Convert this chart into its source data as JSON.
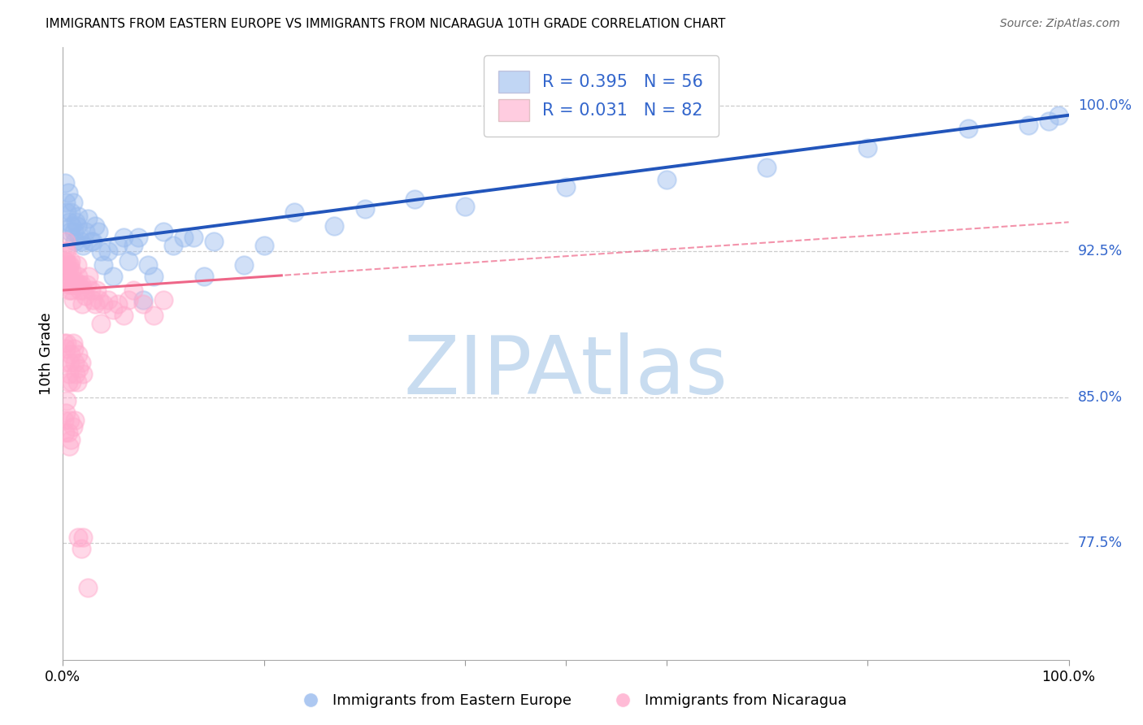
{
  "title": "IMMIGRANTS FROM EASTERN EUROPE VS IMMIGRANTS FROM NICARAGUA 10TH GRADE CORRELATION CHART",
  "source": "Source: ZipAtlas.com",
  "ylabel": "10th Grade",
  "ytick_labels": [
    "77.5%",
    "85.0%",
    "92.5%",
    "100.0%"
  ],
  "ytick_values": [
    0.775,
    0.85,
    0.925,
    1.0
  ],
  "xlim": [
    0.0,
    1.0
  ],
  "ylim": [
    0.715,
    1.03
  ],
  "legend_r1": "R = 0.395",
  "legend_n1": "N = 56",
  "legend_r2": "R = 0.031",
  "legend_n2": "N = 82",
  "blue_color": "#99BBEE",
  "pink_color": "#FFAACC",
  "line_blue": "#2255BB",
  "line_pink": "#EE6688",
  "text_blue": "#3366CC",
  "watermark_color": "#C8DCF0",
  "watermark": "ZIPAtlas",
  "legend_label1": "Immigrants from Eastern Europe",
  "legend_label2": "Immigrants from Nicaragua",
  "blue_x": [
    0.002,
    0.003,
    0.004,
    0.005,
    0.006,
    0.007,
    0.008,
    0.009,
    0.01,
    0.011,
    0.012,
    0.013,
    0.014,
    0.015,
    0.016,
    0.018,
    0.02,
    0.022,
    0.025,
    0.028,
    0.03,
    0.032,
    0.035,
    0.038,
    0.04,
    0.045,
    0.05,
    0.055,
    0.06,
    0.065,
    0.07,
    0.075,
    0.08,
    0.085,
    0.09,
    0.1,
    0.11,
    0.12,
    0.13,
    0.14,
    0.15,
    0.18,
    0.2,
    0.23,
    0.27,
    0.3,
    0.35,
    0.4,
    0.5,
    0.6,
    0.7,
    0.8,
    0.9,
    0.96,
    0.98,
    0.99
  ],
  "blue_y": [
    0.96,
    0.95,
    0.945,
    0.955,
    0.94,
    0.935,
    0.945,
    0.938,
    0.95,
    0.935,
    0.93,
    0.94,
    0.938,
    0.943,
    0.933,
    0.93,
    0.928,
    0.935,
    0.942,
    0.93,
    0.93,
    0.938,
    0.935,
    0.925,
    0.918,
    0.925,
    0.912,
    0.928,
    0.932,
    0.92,
    0.928,
    0.932,
    0.9,
    0.918,
    0.912,
    0.935,
    0.928,
    0.932,
    0.932,
    0.912,
    0.93,
    0.918,
    0.928,
    0.945,
    0.938,
    0.947,
    0.952,
    0.948,
    0.958,
    0.962,
    0.968,
    0.978,
    0.988,
    0.99,
    0.992,
    0.995
  ],
  "pink_x": [
    0.001,
    0.001,
    0.002,
    0.002,
    0.003,
    0.003,
    0.004,
    0.004,
    0.005,
    0.005,
    0.006,
    0.006,
    0.007,
    0.007,
    0.008,
    0.008,
    0.009,
    0.009,
    0.01,
    0.01,
    0.011,
    0.012,
    0.013,
    0.014,
    0.015,
    0.016,
    0.017,
    0.018,
    0.019,
    0.02,
    0.022,
    0.024,
    0.026,
    0.028,
    0.03,
    0.032,
    0.034,
    0.036,
    0.038,
    0.04,
    0.045,
    0.05,
    0.055,
    0.06,
    0.065,
    0.07,
    0.08,
    0.09,
    0.1,
    0.001,
    0.002,
    0.003,
    0.004,
    0.005,
    0.006,
    0.007,
    0.008,
    0.009,
    0.01,
    0.011,
    0.012,
    0.013,
    0.014,
    0.015,
    0.016,
    0.018,
    0.02,
    0.001,
    0.002,
    0.003,
    0.004,
    0.005,
    0.006,
    0.007,
    0.008,
    0.01,
    0.012,
    0.015,
    0.018,
    0.02,
    0.025
  ],
  "pink_y": [
    0.92,
    0.91,
    0.925,
    0.915,
    0.93,
    0.92,
    0.925,
    0.915,
    0.918,
    0.908,
    0.915,
    0.905,
    0.918,
    0.908,
    0.92,
    0.91,
    0.915,
    0.905,
    0.908,
    0.9,
    0.908,
    0.91,
    0.908,
    0.918,
    0.912,
    0.908,
    0.905,
    0.908,
    0.898,
    0.905,
    0.902,
    0.908,
    0.912,
    0.905,
    0.9,
    0.898,
    0.905,
    0.9,
    0.888,
    0.898,
    0.9,
    0.895,
    0.898,
    0.892,
    0.9,
    0.905,
    0.898,
    0.892,
    0.9,
    0.878,
    0.868,
    0.875,
    0.878,
    0.858,
    0.862,
    0.868,
    0.872,
    0.858,
    0.878,
    0.875,
    0.868,
    0.862,
    0.858,
    0.872,
    0.865,
    0.868,
    0.862,
    0.838,
    0.832,
    0.842,
    0.848,
    0.832,
    0.825,
    0.838,
    0.828,
    0.835,
    0.838,
    0.778,
    0.772,
    0.778,
    0.752
  ]
}
